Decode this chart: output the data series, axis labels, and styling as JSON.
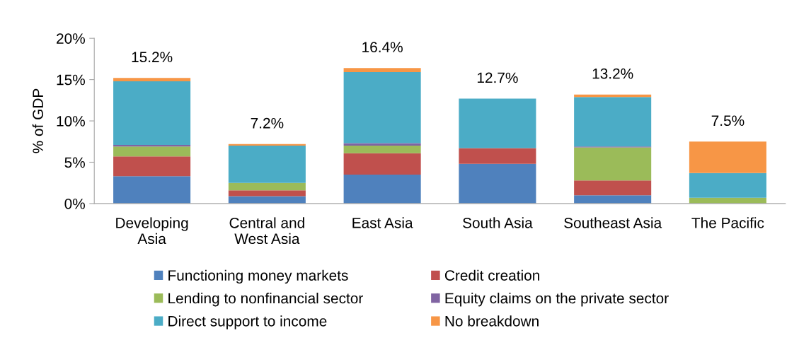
{
  "chart_data": {
    "type": "bar",
    "stacked": true,
    "categories": [
      "Developing\nAsia",
      "Central and\nWest Asia",
      "East Asia",
      "South Asia",
      "Southeast Asia",
      "The Pacific"
    ],
    "series": [
      {
        "name": "Functioning money markets",
        "color": "#4f81bd",
        "values": [
          3.3,
          0.9,
          3.5,
          4.8,
          1.0,
          null
        ]
      },
      {
        "name": "Credit creation",
        "color": "#c0504d",
        "values": [
          2.4,
          0.7,
          2.6,
          1.9,
          1.8,
          null
        ]
      },
      {
        "name": "Lending to nonfinancial sector",
        "color": "#9bbb59",
        "values": [
          1.2,
          0.9,
          0.9,
          null,
          4.0,
          0.7
        ]
      },
      {
        "name": "Equity claims on the private sector",
        "color": "#8064a2",
        "values": [
          0.2,
          null,
          0.3,
          null,
          0.1,
          null
        ]
      },
      {
        "name": "Direct support to income",
        "color": "#4bacc6",
        "values": [
          7.7,
          4.5,
          8.6,
          6.0,
          6.0,
          3.0
        ]
      },
      {
        "name": "No breakdown",
        "color": "#f79646",
        "values": [
          0.4,
          0.2,
          0.5,
          null,
          0.3,
          3.8
        ]
      }
    ],
    "totals": [
      "15.2%",
      "7.2%",
      "16.4%",
      "12.7%",
      "13.2%",
      "7.5%"
    ],
    "ylabel": "% of GDP",
    "ylim": [
      0,
      20
    ],
    "yticks": [
      {
        "value": 0,
        "label": "0%"
      },
      {
        "value": 5,
        "label": "5%"
      },
      {
        "value": 10,
        "label": "10%"
      },
      {
        "value": 15,
        "label": "15%"
      },
      {
        "value": 20,
        "label": "20%"
      }
    ],
    "legend": "bottom"
  }
}
